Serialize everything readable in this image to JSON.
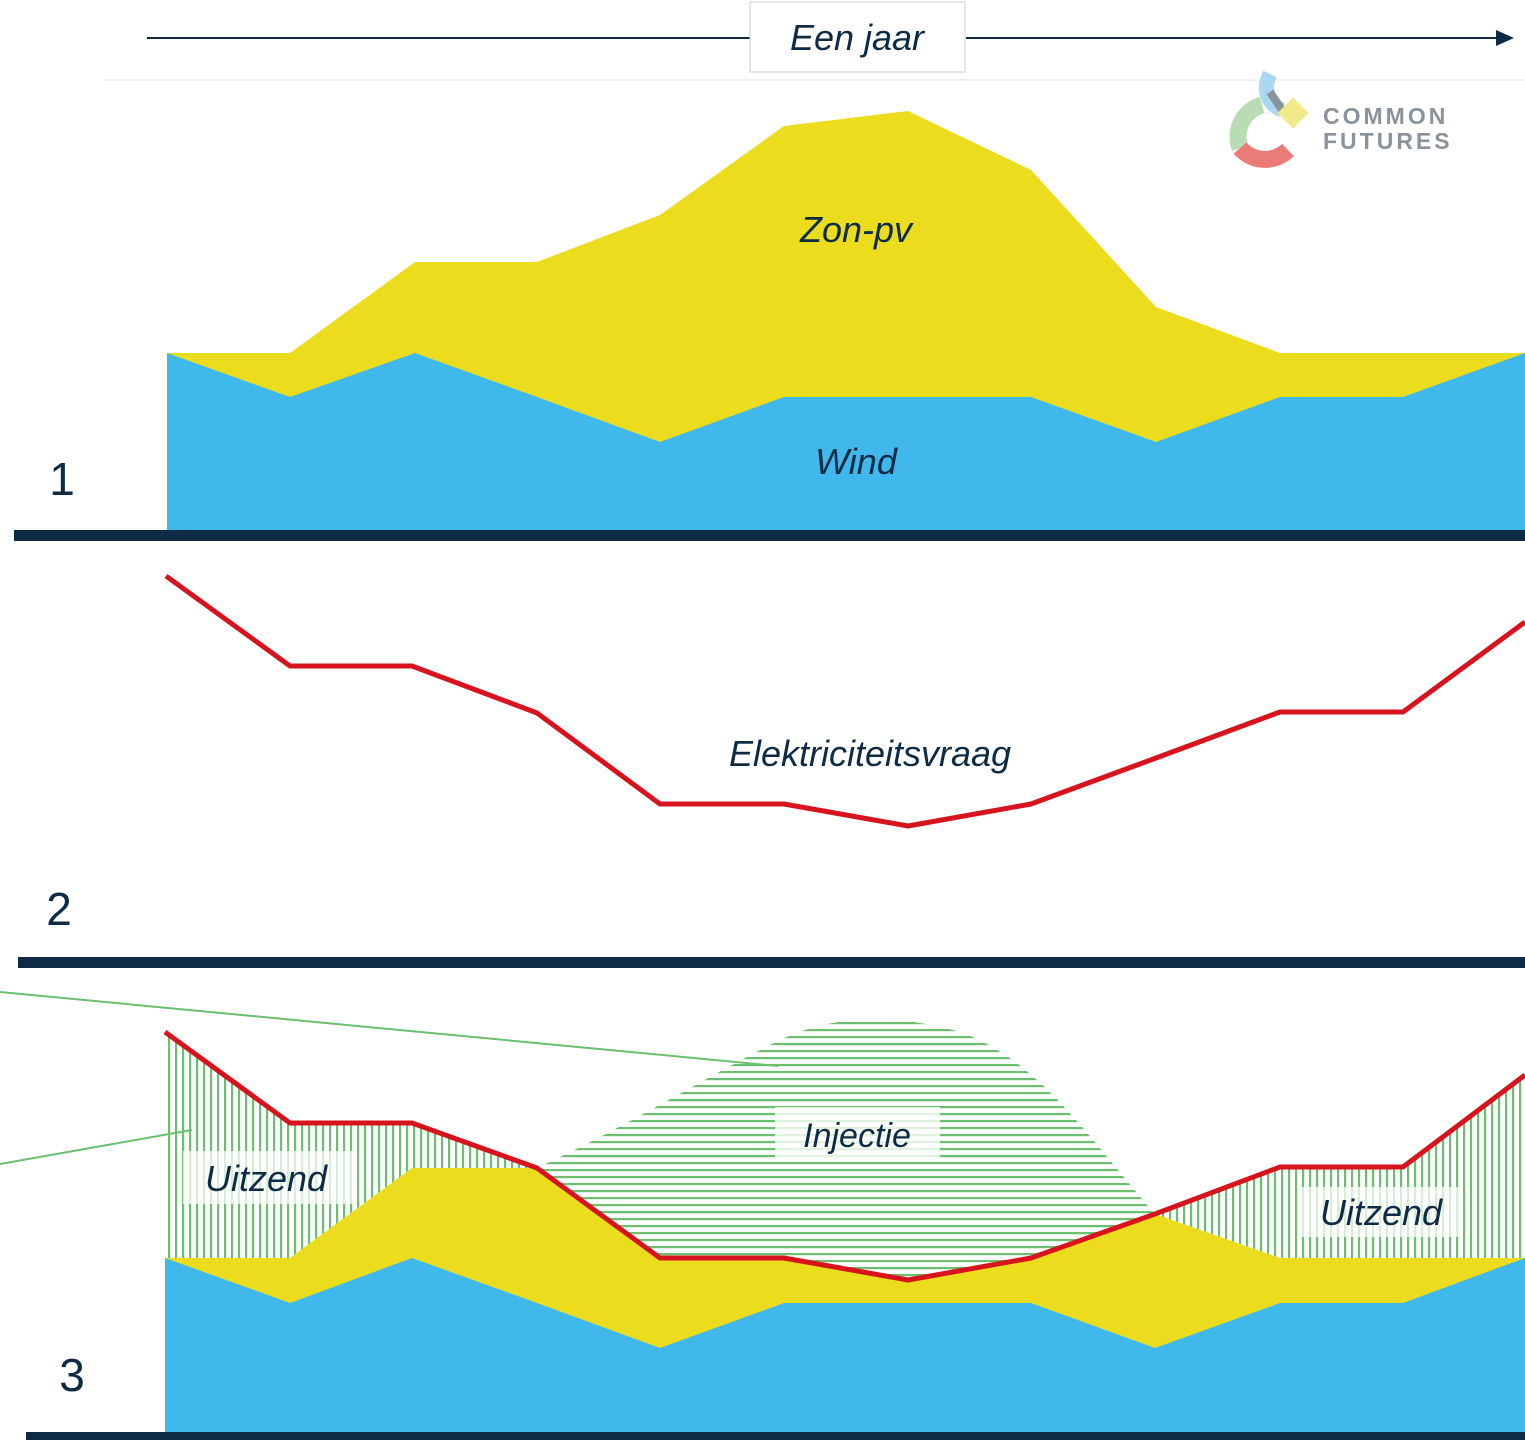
{
  "header": {
    "timeline_label": "Een jaar"
  },
  "logo": {
    "line1": "COMMON",
    "line2": "FUTURES"
  },
  "panel1": {
    "number": "1",
    "solar_label": "Zon-pv",
    "wind_label": "Wind"
  },
  "panel2": {
    "number": "2",
    "demand_label": "Elektriciteitsvraag"
  },
  "panel3": {
    "number": "3",
    "injection_label": "Injectie",
    "export_left_label": "Uitzend",
    "export_right_label": "Uitzend"
  },
  "colors": {
    "solar": "#ecdc1e",
    "wind": "#41b8ec",
    "demand": "#d7141e",
    "surplus_hatch": "#6cbf6f",
    "baseline": "#0d2b45"
  }
}
